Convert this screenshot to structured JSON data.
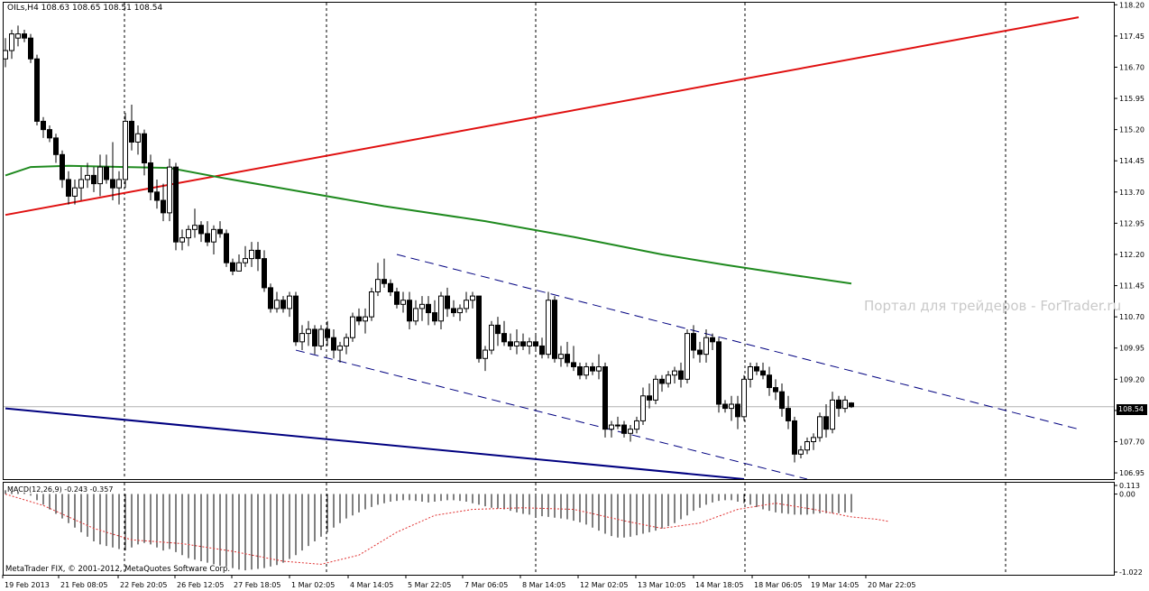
{
  "header": {
    "text": "OILs,H4  108.63 108.65 108.51 108.54"
  },
  "watermark": "Портал для трейдеров - ForTrader.ru",
  "macd_header": "MACD(12,26,9) -0.243 -0.357",
  "copyright": "MetaTrader FIX, © 2001-2012, MetaQuotes Software Corp.",
  "current_price_label": "108.54",
  "colors": {
    "background": "#ffffff",
    "candle": "#000000",
    "resistance_line": "#e01010",
    "moving_average": "#1f8a1f",
    "support_line": "#000080",
    "channel": "#000080",
    "macd_signal": "#e03030",
    "grid": "#000000"
  },
  "chart_data": {
    "type": "candlestick",
    "symbol": "OILs",
    "timeframe": "H4",
    "last_quote": {
      "open": 108.63,
      "high": 108.65,
      "low": 108.51,
      "close": 108.54
    },
    "price_axis": {
      "ticks": [
        "118.20",
        "117.45",
        "116.70",
        "115.95",
        "115.20",
        "114.45",
        "113.70",
        "112.95",
        "112.20",
        "111.45",
        "110.70",
        "109.95",
        "109.20",
        "108.45",
        "107.70",
        "106.95"
      ],
      "ylim": [
        106.8,
        118.25
      ]
    },
    "time_axis": {
      "ticks": [
        "19 Feb 2013",
        "21 Feb 08:05",
        "22 Feb 20:05",
        "26 Feb 12:05",
        "27 Feb 18:05",
        "1 Mar 02:05",
        "4 Mar 14:05",
        "5 Mar 22:05",
        "7 Mar 06:05",
        "8 Mar 14:05",
        "12 Mar 02:05",
        "13 Mar 10:05",
        "14 Mar 18:05",
        "18 Mar 06:05",
        "19 Mar 14:05",
        "20 Mar 22:05"
      ]
    },
    "candles": [
      [
        116.9,
        117.4,
        116.7,
        117.1
      ],
      [
        117.1,
        117.6,
        116.9,
        117.5
      ],
      [
        117.4,
        117.7,
        117.2,
        117.5
      ],
      [
        117.5,
        117.6,
        117.3,
        117.4
      ],
      [
        117.4,
        117.5,
        116.8,
        116.9
      ],
      [
        116.9,
        117.0,
        115.3,
        115.4
      ],
      [
        115.4,
        115.5,
        115.0,
        115.2
      ],
      [
        115.2,
        115.3,
        114.9,
        115.0
      ],
      [
        115.0,
        115.1,
        114.4,
        114.6
      ],
      [
        114.6,
        114.7,
        113.8,
        114.0
      ],
      [
        114.0,
        114.2,
        113.4,
        113.6
      ],
      [
        113.6,
        114.0,
        113.4,
        113.8
      ],
      [
        113.8,
        114.3,
        113.5,
        114.0
      ],
      [
        114.0,
        114.4,
        113.8,
        114.1
      ],
      [
        114.1,
        114.3,
        113.7,
        113.9
      ],
      [
        113.9,
        114.6,
        113.6,
        114.3
      ],
      [
        114.3,
        114.6,
        113.9,
        114.0
      ],
      [
        114.0,
        114.9,
        113.5,
        113.8
      ],
      [
        113.8,
        114.2,
        113.4,
        114.0
      ],
      [
        114.0,
        115.6,
        113.8,
        115.4
      ],
      [
        115.4,
        115.8,
        114.7,
        114.9
      ],
      [
        114.9,
        115.3,
        114.6,
        115.1
      ],
      [
        115.1,
        115.2,
        114.1,
        114.4
      ],
      [
        114.4,
        114.6,
        113.5,
        113.7
      ],
      [
        113.7,
        114.0,
        113.3,
        113.5
      ],
      [
        113.5,
        113.9,
        113.0,
        113.2
      ],
      [
        113.2,
        114.5,
        113.0,
        114.3
      ],
      [
        114.3,
        114.4,
        112.3,
        112.5
      ],
      [
        112.5,
        112.8,
        112.3,
        112.6
      ],
      [
        112.6,
        112.9,
        112.4,
        112.8
      ],
      [
        112.8,
        113.3,
        112.6,
        112.9
      ],
      [
        112.9,
        113.0,
        112.5,
        112.7
      ],
      [
        112.7,
        113.0,
        112.4,
        112.5
      ],
      [
        112.5,
        112.9,
        112.2,
        112.8
      ],
      [
        112.8,
        113.0,
        112.6,
        112.7
      ],
      [
        112.7,
        112.8,
        111.9,
        112.0
      ],
      [
        112.0,
        112.1,
        111.7,
        111.8
      ],
      [
        111.8,
        112.2,
        111.8,
        112.0
      ],
      [
        112.0,
        112.4,
        111.9,
        112.1
      ],
      [
        112.1,
        112.5,
        111.9,
        112.3
      ],
      [
        112.3,
        112.5,
        111.8,
        112.1
      ],
      [
        112.1,
        112.3,
        111.3,
        111.4
      ],
      [
        111.4,
        111.5,
        110.8,
        110.9
      ],
      [
        110.9,
        111.3,
        110.8,
        111.1
      ],
      [
        111.1,
        111.2,
        110.8,
        110.9
      ],
      [
        110.9,
        111.3,
        110.7,
        111.2
      ],
      [
        111.2,
        111.3,
        110.0,
        110.1
      ],
      [
        110.1,
        110.5,
        109.9,
        110.3
      ],
      [
        110.3,
        110.6,
        110.0,
        110.4
      ],
      [
        110.4,
        110.5,
        109.8,
        110.0
      ],
      [
        110.0,
        110.5,
        109.9,
        110.4
      ],
      [
        110.4,
        110.6,
        110.0,
        110.2
      ],
      [
        110.2,
        110.4,
        109.7,
        109.9
      ],
      [
        109.9,
        110.1,
        109.6,
        110.0
      ],
      [
        110.0,
        110.3,
        109.8,
        110.2
      ],
      [
        110.2,
        110.8,
        110.1,
        110.7
      ],
      [
        110.7,
        110.9,
        110.5,
        110.6
      ],
      [
        110.6,
        110.9,
        110.3,
        110.7
      ],
      [
        110.7,
        111.4,
        110.6,
        111.3
      ],
      [
        111.3,
        112.0,
        111.2,
        111.6
      ],
      [
        111.6,
        112.1,
        111.4,
        111.5
      ],
      [
        111.5,
        111.6,
        111.2,
        111.3
      ],
      [
        111.3,
        111.4,
        110.9,
        111.0
      ],
      [
        111.0,
        111.3,
        110.8,
        111.1
      ],
      [
        111.1,
        111.3,
        110.4,
        110.6
      ],
      [
        110.6,
        111.1,
        110.5,
        110.9
      ],
      [
        110.9,
        111.2,
        110.6,
        111.0
      ],
      [
        111.0,
        111.2,
        110.5,
        110.8
      ],
      [
        110.8,
        111.1,
        110.5,
        110.6
      ],
      [
        110.6,
        111.3,
        110.4,
        111.2
      ],
      [
        111.2,
        111.4,
        110.7,
        110.9
      ],
      [
        110.9,
        111.1,
        110.7,
        110.8
      ],
      [
        110.8,
        111.0,
        110.6,
        110.9
      ],
      [
        110.9,
        111.3,
        110.8,
        111.1
      ],
      [
        111.1,
        111.3,
        110.9,
        111.2
      ],
      [
        111.2,
        111.2,
        109.6,
        109.7
      ],
      [
        109.7,
        110.0,
        109.4,
        109.9
      ],
      [
        109.9,
        110.6,
        109.8,
        110.5
      ],
      [
        110.5,
        110.7,
        110.0,
        110.3
      ],
      [
        110.3,
        110.6,
        110.0,
        110.1
      ],
      [
        110.1,
        110.3,
        109.9,
        110.0
      ],
      [
        110.0,
        110.4,
        109.8,
        110.1
      ],
      [
        110.1,
        110.3,
        109.9,
        110.0
      ],
      [
        110.0,
        110.2,
        109.8,
        110.1
      ],
      [
        110.1,
        110.3,
        109.9,
        110.0
      ],
      [
        110.0,
        110.2,
        109.7,
        109.8
      ],
      [
        109.8,
        111.3,
        109.7,
        111.1
      ],
      [
        111.1,
        111.2,
        109.6,
        109.7
      ],
      [
        109.7,
        110.0,
        109.5,
        109.8
      ],
      [
        109.8,
        110.1,
        109.5,
        109.6
      ],
      [
        109.6,
        110.0,
        109.4,
        109.5
      ],
      [
        109.5,
        109.6,
        109.2,
        109.3
      ],
      [
        109.3,
        109.6,
        109.2,
        109.5
      ],
      [
        109.5,
        109.6,
        109.3,
        109.4
      ],
      [
        109.4,
        109.8,
        109.2,
        109.5
      ],
      [
        109.5,
        109.6,
        107.8,
        108.0
      ],
      [
        108.0,
        108.2,
        107.8,
        108.1
      ],
      [
        108.1,
        108.3,
        108.0,
        108.1
      ],
      [
        108.1,
        108.2,
        107.8,
        107.9
      ],
      [
        107.9,
        108.1,
        107.7,
        108.0
      ],
      [
        108.0,
        108.3,
        107.9,
        108.2
      ],
      [
        108.2,
        109.0,
        108.1,
        108.8
      ],
      [
        108.8,
        109.1,
        108.5,
        108.7
      ],
      [
        108.7,
        109.3,
        108.6,
        109.2
      ],
      [
        109.2,
        109.3,
        108.9,
        109.1
      ],
      [
        109.1,
        109.4,
        109.0,
        109.3
      ],
      [
        109.3,
        109.5,
        109.1,
        109.4
      ],
      [
        109.4,
        109.6,
        109.0,
        109.2
      ],
      [
        109.2,
        110.4,
        109.1,
        110.3
      ],
      [
        110.3,
        110.5,
        109.7,
        109.9
      ],
      [
        109.9,
        110.1,
        109.6,
        109.8
      ],
      [
        109.8,
        110.4,
        109.6,
        110.2
      ],
      [
        110.2,
        110.3,
        109.9,
        110.1
      ],
      [
        110.1,
        110.2,
        108.4,
        108.6
      ],
      [
        108.6,
        108.7,
        108.4,
        108.5
      ],
      [
        108.5,
        108.8,
        108.2,
        108.6
      ],
      [
        108.6,
        108.8,
        108.0,
        108.3
      ],
      [
        108.3,
        109.3,
        108.2,
        109.2
      ],
      [
        109.2,
        109.6,
        109.0,
        109.5
      ],
      [
        109.5,
        109.6,
        109.3,
        109.4
      ],
      [
        109.4,
        109.6,
        109.2,
        109.3
      ],
      [
        109.3,
        109.5,
        108.8,
        109.0
      ],
      [
        109.0,
        109.2,
        108.7,
        108.9
      ],
      [
        108.9,
        109.1,
        108.3,
        108.5
      ],
      [
        108.5,
        108.8,
        108.0,
        108.2
      ],
      [
        108.2,
        108.3,
        107.2,
        107.4
      ],
      [
        107.4,
        107.6,
        107.3,
        107.5
      ],
      [
        107.5,
        107.8,
        107.4,
        107.7
      ],
      [
        107.7,
        107.9,
        107.5,
        107.8
      ],
      [
        107.8,
        108.4,
        107.7,
        108.3
      ],
      [
        108.3,
        108.6,
        107.8,
        108.0
      ],
      [
        108.0,
        108.9,
        107.9,
        108.7
      ],
      [
        108.7,
        108.8,
        108.3,
        108.5
      ],
      [
        108.5,
        108.8,
        108.4,
        108.7
      ],
      [
        108.63,
        108.65,
        108.51,
        108.54
      ]
    ],
    "moving_average": {
      "points": [
        [
          0,
          114.1
        ],
        [
          4,
          114.3
        ],
        [
          10,
          114.33
        ],
        [
          26,
          114.28
        ],
        [
          34,
          114.05
        ],
        [
          46,
          113.73
        ],
        [
          60,
          113.36
        ],
        [
          76,
          113.0
        ],
        [
          90,
          112.62
        ],
        [
          104,
          112.2
        ],
        [
          114,
          111.95
        ],
        [
          124,
          111.72
        ],
        [
          134,
          111.5
        ]
      ]
    },
    "trend_lines": [
      {
        "name": "resistance",
        "from": [
          0,
          113.15
        ],
        "to": [
          170,
          117.9
        ]
      },
      {
        "name": "support",
        "from": [
          0,
          108.5
        ],
        "to": [
          117,
          106.8
        ]
      }
    ],
    "channel_lines": [
      {
        "from": [
          62,
          112.2
        ],
        "to": [
          170,
          108.0
        ]
      },
      {
        "from": [
          46,
          109.9
        ],
        "to": [
          127,
          106.8
        ]
      }
    ],
    "macd": {
      "label": "MACD(12,26,9)",
      "main": -0.243,
      "signal": -0.357,
      "axis_ticks": [
        "0.113",
        "0.00",
        "-1.022"
      ],
      "ylim": [
        -1.022,
        0.113
      ],
      "histogram": [
        0.05,
        0.04,
        0.03,
        0.02,
        -0.02,
        -0.08,
        -0.14,
        -0.2,
        -0.26,
        -0.32,
        -0.38,
        -0.44,
        -0.5,
        -0.56,
        -0.62,
        -0.66,
        -0.68,
        -0.7,
        -0.72,
        -0.74,
        -0.7,
        -0.66,
        -0.64,
        -0.66,
        -0.7,
        -0.74,
        -0.72,
        -0.76,
        -0.8,
        -0.84,
        -0.86,
        -0.88,
        -0.9,
        -0.92,
        -0.94,
        -0.95,
        -0.97,
        -0.99,
        -1.0,
        -0.99,
        -0.98,
        -0.97,
        -0.95,
        -0.93,
        -0.9,
        -0.85,
        -0.8,
        -0.74,
        -0.68,
        -0.62,
        -0.56,
        -0.5,
        -0.44,
        -0.38,
        -0.32,
        -0.28,
        -0.24,
        -0.2,
        -0.17,
        -0.14,
        -0.12,
        -0.1,
        -0.09,
        -0.08,
        -0.08,
        -0.09,
        -0.1,
        -0.11,
        -0.1,
        -0.09,
        -0.08,
        -0.08,
        -0.09,
        -0.1,
        -0.12,
        -0.14,
        -0.16,
        -0.18,
        -0.19,
        -0.2,
        -0.22,
        -0.24,
        -0.26,
        -0.27,
        -0.28,
        -0.29,
        -0.3,
        -0.31,
        -0.32,
        -0.33,
        -0.35,
        -0.37,
        -0.4,
        -0.44,
        -0.48,
        -0.52,
        -0.55,
        -0.57,
        -0.57,
        -0.56,
        -0.54,
        -0.52,
        -0.5,
        -0.48,
        -0.45,
        -0.42,
        -0.38,
        -0.33,
        -0.28,
        -0.22,
        -0.18,
        -0.14,
        -0.11,
        -0.09,
        -0.08,
        -0.08,
        -0.1,
        -0.12,
        -0.14,
        -0.17,
        -0.2,
        -0.22,
        -0.24,
        -0.25,
        -0.26,
        -0.27,
        -0.27,
        -0.27,
        -0.26,
        -0.25,
        -0.25,
        -0.25,
        -0.25,
        -0.24,
        -0.24
      ],
      "signal_points": [
        [
          0,
          0.0
        ],
        [
          6,
          -0.15
        ],
        [
          14,
          -0.45
        ],
        [
          20,
          -0.6
        ],
        [
          28,
          -0.65
        ],
        [
          36,
          -0.75
        ],
        [
          44,
          -0.88
        ],
        [
          50,
          -0.92
        ],
        [
          56,
          -0.8
        ],
        [
          62,
          -0.5
        ],
        [
          68,
          -0.28
        ],
        [
          74,
          -0.2
        ],
        [
          82,
          -0.18
        ],
        [
          90,
          -0.2
        ],
        [
          98,
          -0.35
        ],
        [
          104,
          -0.45
        ],
        [
          110,
          -0.38
        ],
        [
          116,
          -0.2
        ],
        [
          122,
          -0.12
        ],
        [
          128,
          -0.2
        ],
        [
          134,
          -0.3
        ],
        [
          138,
          -0.33
        ],
        [
          140,
          -0.36
        ]
      ]
    }
  }
}
